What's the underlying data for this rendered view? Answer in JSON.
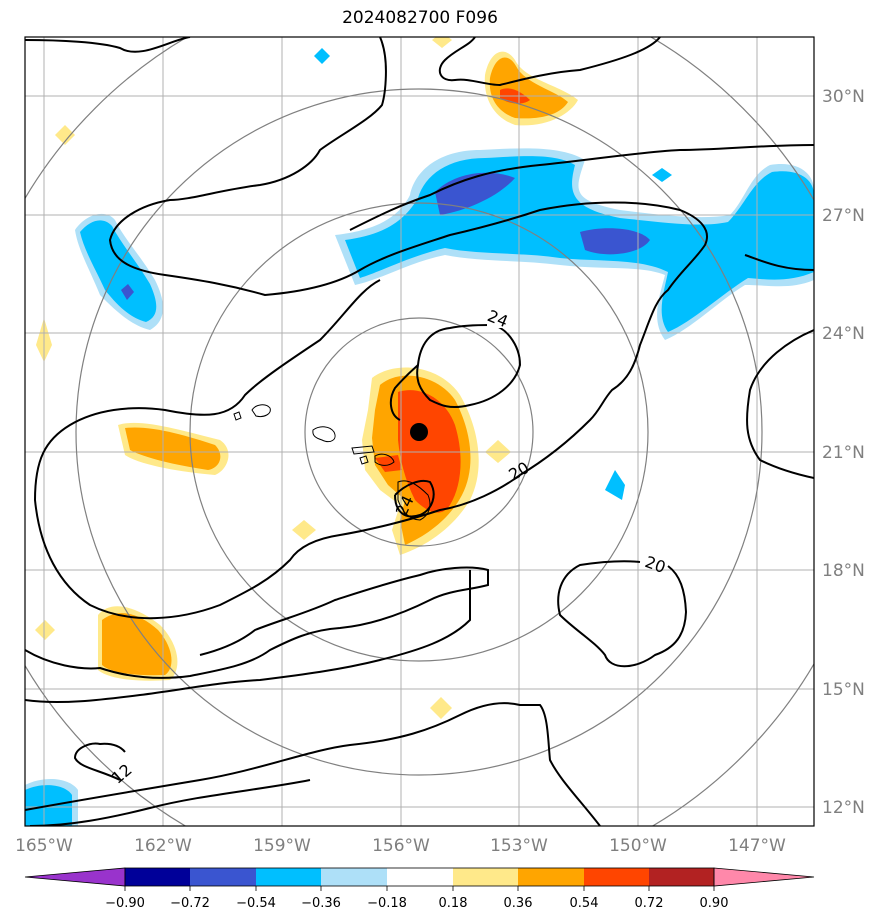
{
  "title": "2024082700 F096",
  "map": {
    "lon_labels": [
      "165°W",
      "162°W",
      "159°W",
      "156°W",
      "153°W",
      "150°W",
      "147°W"
    ],
    "lat_labels": [
      "30°N",
      "27°N",
      "24°N",
      "21°N",
      "18°N",
      "15°N",
      "12°N"
    ],
    "contour_labels": [
      "24",
      "20",
      "20",
      "12",
      "24"
    ],
    "storm_center": "Tropical cyclone center marker",
    "range_rings": 4
  },
  "colorbar": {
    "ticks": [
      "−0.90",
      "−0.72",
      "−0.54",
      "−0.36",
      "−0.18",
      "0.18",
      "0.36",
      "0.54",
      "0.72",
      "0.90"
    ],
    "colors": [
      "#9933cc",
      "#000099",
      "#3a55d0",
      "#00bfff",
      "#aee0f8",
      "#ffffff",
      "#ffe98a",
      "#ffa500",
      "#ff4500",
      "#b22222",
      "#ff88aa"
    ]
  },
  "colors": {
    "pos_light": "#ffe98a",
    "pos_mid": "#ffa500",
    "pos_strong": "#ff4500",
    "pos_max": "#b22222",
    "neg_light": "#aee0f8",
    "neg_mid": "#00bfff",
    "neg_strong": "#3a55d0",
    "grid": "#b0b0b0",
    "ring": "#808080"
  }
}
